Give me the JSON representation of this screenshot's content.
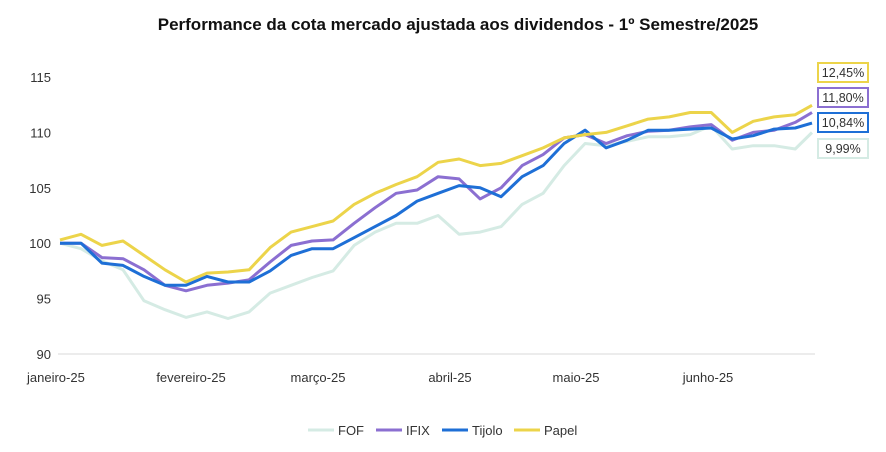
{
  "chart_data": {
    "type": "line",
    "title": "Performance da cota mercado ajustada aos dividendos - 1º Semestre/2025",
    "xlabel": "",
    "ylabel": "",
    "ylim": [
      90,
      115
    ],
    "yticks": [
      "90",
      "95",
      "100",
      "105",
      "110",
      "115"
    ],
    "xtick_labels": [
      "janeiro-25",
      "fevereiro-25",
      "março-25",
      "abril-25",
      "maio-25",
      "junho-25"
    ],
    "grid": false,
    "legend": "bottom",
    "x": [
      "2025-01-02",
      "2025-01-07",
      "2025-01-12",
      "2025-01-17",
      "2025-01-22",
      "2025-01-27",
      "2025-02-01",
      "2025-02-06",
      "2025-02-11",
      "2025-02-16",
      "2025-02-21",
      "2025-02-26",
      "2025-03-03",
      "2025-03-08",
      "2025-03-13",
      "2025-03-18",
      "2025-03-23",
      "2025-03-28",
      "2025-04-02",
      "2025-04-07",
      "2025-04-12",
      "2025-04-17",
      "2025-04-22",
      "2025-04-27",
      "2025-05-02",
      "2025-05-07",
      "2025-05-12",
      "2025-05-17",
      "2025-05-22",
      "2025-05-27",
      "2025-06-01",
      "2025-06-06",
      "2025-06-11",
      "2025-06-16",
      "2025-06-21",
      "2025-06-26",
      "2025-06-30"
    ],
    "series": [
      {
        "name": "FOF",
        "color": "#d5ebe4",
        "end_label": "9,99%",
        "values": [
          100.0,
          99.5,
          98.4,
          97.6,
          94.8,
          94.0,
          93.3,
          93.8,
          93.2,
          93.8,
          95.5,
          96.2,
          96.9,
          97.5,
          99.8,
          101.0,
          101.8,
          101.8,
          102.5,
          100.8,
          101.0,
          101.5,
          103.5,
          104.5,
          107.0,
          109.0,
          108.8,
          109.2,
          109.6,
          109.6,
          109.8,
          110.6,
          108.5,
          108.8,
          108.8,
          108.5,
          109.99
        ]
      },
      {
        "name": "IFIX",
        "color": "#8b6fd1",
        "end_label": "11,80%",
        "values": [
          100.0,
          100.0,
          98.7,
          98.6,
          97.6,
          96.2,
          95.7,
          96.2,
          96.4,
          96.7,
          98.3,
          99.8,
          100.2,
          100.3,
          101.8,
          103.2,
          104.5,
          104.8,
          106.0,
          105.8,
          104.0,
          105.0,
          107.0,
          108.0,
          109.5,
          109.8,
          109.0,
          109.7,
          110.1,
          110.2,
          110.5,
          110.7,
          109.3,
          110.0,
          110.2,
          110.9,
          111.8
        ]
      },
      {
        "name": "Tijolo",
        "color": "#1e6fd6",
        "end_label": "10,84%",
        "values": [
          100.0,
          100.0,
          98.2,
          98.0,
          97.0,
          96.2,
          96.2,
          97.0,
          96.5,
          96.5,
          97.5,
          98.9,
          99.5,
          99.5,
          100.5,
          101.5,
          102.5,
          103.8,
          104.5,
          105.2,
          105.0,
          104.2,
          106.0,
          107.0,
          109.0,
          110.2,
          108.6,
          109.3,
          110.2,
          110.2,
          110.3,
          110.4,
          109.4,
          109.7,
          110.3,
          110.4,
          110.84
        ]
      },
      {
        "name": "Papel",
        "color": "#ecd44a",
        "end_label": "12,45%",
        "values": [
          100.3,
          100.8,
          99.8,
          100.2,
          98.9,
          97.6,
          96.5,
          97.3,
          97.4,
          97.6,
          99.6,
          101.0,
          101.5,
          102.0,
          103.5,
          104.5,
          105.3,
          106.0,
          107.3,
          107.6,
          107.0,
          107.2,
          107.9,
          108.6,
          109.5,
          109.8,
          110.0,
          110.6,
          111.2,
          111.4,
          111.8,
          111.8,
          110.0,
          111.0,
          111.4,
          111.6,
          112.45
        ]
      }
    ]
  }
}
